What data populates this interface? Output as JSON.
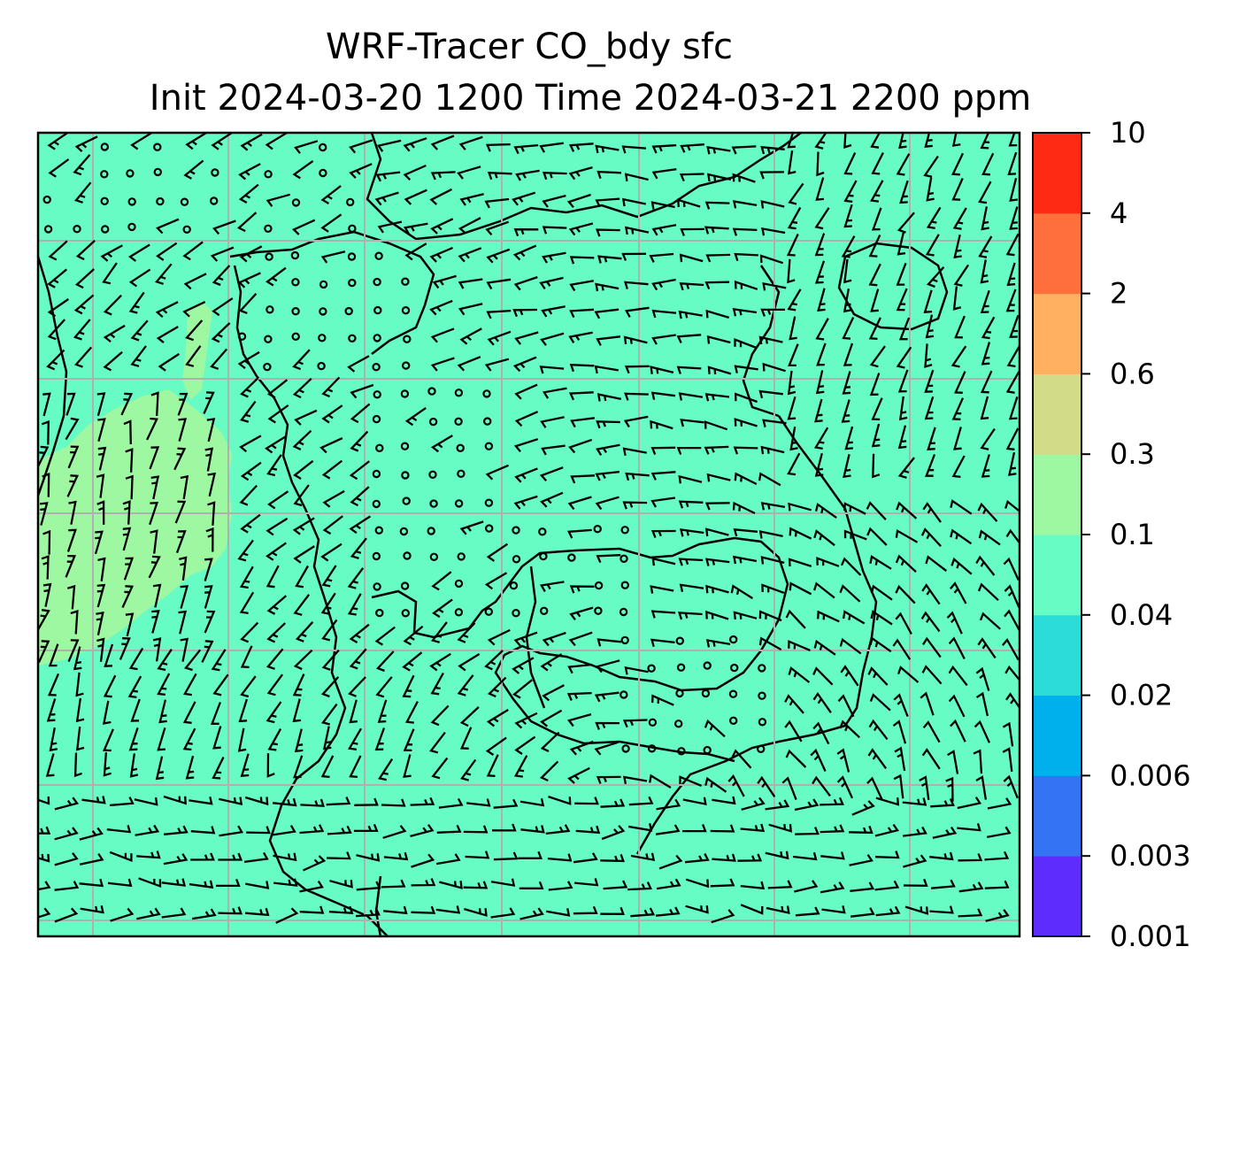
{
  "title": {
    "line1": "WRF-Tracer CO_bdy sfc",
    "line2": "Init 2024-03-20 1200 Time 2024-03-21 2200 ppm"
  },
  "map": {
    "field_name": "CO_bdy",
    "level": "sfc",
    "units": "ppm",
    "background_color": "#66fcc4",
    "gridline_color": "#b0b0b0",
    "coastline_color": "#000000",
    "barb_color": "#000000",
    "gridlines": true
  },
  "colorbar": {
    "orientation": "vertical",
    "position": "right",
    "levels": [
      0.001,
      0.003,
      0.006,
      0.02,
      0.04,
      0.1,
      0.3,
      0.6,
      2,
      4,
      10
    ],
    "tick_labels": [
      "0.001",
      "0.003",
      "0.006",
      "0.02",
      "0.04",
      "0.1",
      "0.3",
      "0.6",
      "2",
      "4",
      "10"
    ],
    "colors": [
      "#5e2cfd",
      "#3474f4",
      "#00b0ec",
      "#2cdcd8",
      "#66fcc4",
      "#9ef8a2",
      "#d2dc86",
      "#ffb060",
      "#ff703c",
      "#ff2a14"
    ]
  }
}
